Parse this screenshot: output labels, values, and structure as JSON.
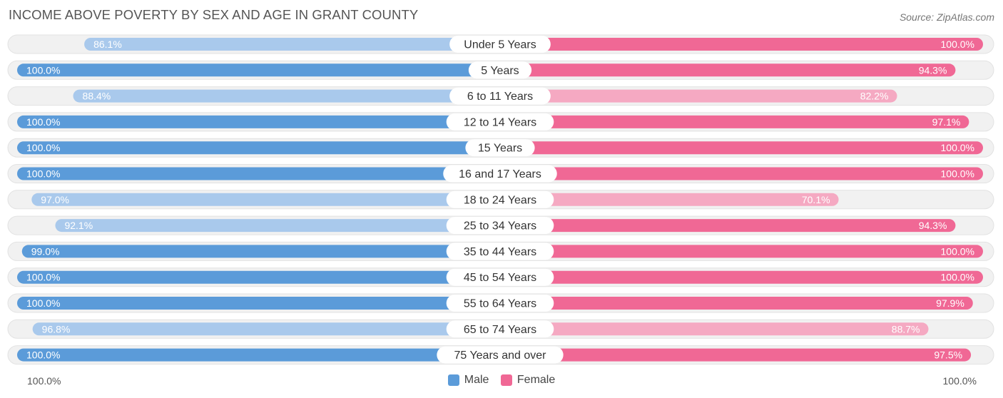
{
  "chart_data": {
    "type": "bar",
    "orientation": "horizontal-diverging",
    "title": "INCOME ABOVE POVERTY BY SEX AND AGE IN GRANT COUNTY",
    "source": "Source: ZipAtlas.com",
    "categories": [
      "Under 5 Years",
      "5 Years",
      "6 to 11 Years",
      "12 to 14 Years",
      "15 Years",
      "16 and 17 Years",
      "18 to 24 Years",
      "25 to 34 Years",
      "35 to 44 Years",
      "45 to 54 Years",
      "55 to 64 Years",
      "65 to 74 Years",
      "75 Years and over"
    ],
    "series": [
      {
        "name": "Male",
        "color": "#5b9bd9",
        "color_light": "#a9c9ec",
        "values": [
          86.1,
          100.0,
          88.4,
          100.0,
          100.0,
          100.0,
          97.0,
          92.1,
          99.0,
          100.0,
          100.0,
          96.8,
          100.0
        ],
        "labels": [
          "86.1%",
          "100.0%",
          "88.4%",
          "100.0%",
          "100.0%",
          "100.0%",
          "97.0%",
          "92.1%",
          "99.0%",
          "100.0%",
          "100.0%",
          "96.8%",
          "100.0%"
        ]
      },
      {
        "name": "Female",
        "color": "#f06895",
        "color_light": "#f5a9c2",
        "values": [
          100.0,
          94.3,
          82.2,
          97.1,
          100.0,
          100.0,
          70.1,
          94.3,
          100.0,
          100.0,
          97.9,
          88.7,
          97.5
        ],
        "labels": [
          "100.0%",
          "94.3%",
          "82.2%",
          "97.1%",
          "100.0%",
          "100.0%",
          "70.1%",
          "94.3%",
          "100.0%",
          "100.0%",
          "97.9%",
          "88.7%",
          "97.5%"
        ]
      }
    ],
    "xlim": [
      0,
      100
    ],
    "axis_left_label": "100.0%",
    "axis_right_label": "100.0%",
    "legend": [
      "Male",
      "Female"
    ],
    "legend_position": "bottom-center"
  }
}
